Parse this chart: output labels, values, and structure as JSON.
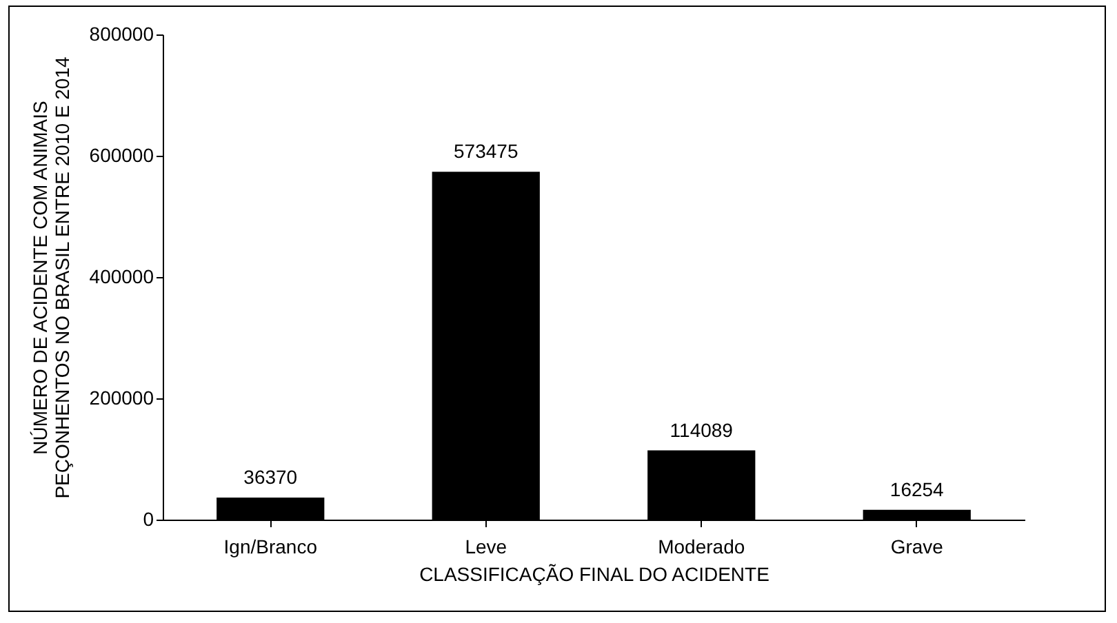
{
  "chart_data": {
    "type": "bar",
    "xlabel": "CLASSIFICAÇÃO  FINAL DO ACIDENTE",
    "ylabel": "NÚMERO DE ACIDENTE COM ANIMAIS PEÇONHENTOS NO BRASIL ENTRE 2010 E 2014",
    "categories": [
      "Ign/Branco",
      "Leve",
      "Moderado",
      "Grave"
    ],
    "values": [
      36370,
      573475,
      114089,
      16254
    ],
    "color": "#000000",
    "ylim": [
      0,
      800000
    ],
    "yticks": [
      0,
      200000,
      400000,
      600000,
      800000
    ],
    "grid": false,
    "data_labels": true
  }
}
